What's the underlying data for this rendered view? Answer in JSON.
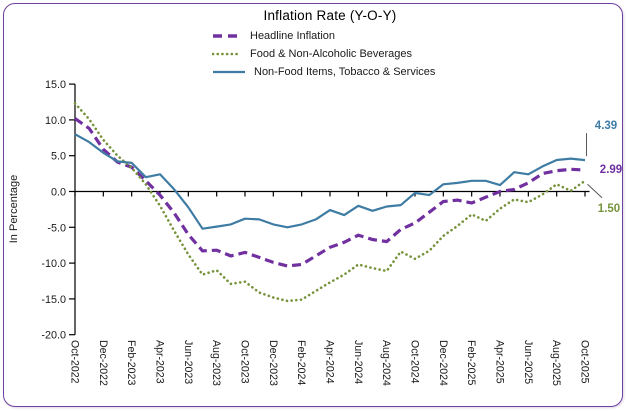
{
  "frame": {
    "border_color": "#7040A0"
  },
  "header": {
    "title": "Inflation Rate (Y-O-Y)"
  },
  "legend": {
    "items": [
      {
        "label": "Headline Inflation",
        "color": "#7030A0",
        "style": "dashed"
      },
      {
        "label": "Food & Non-Alcoholic Beverages",
        "color": "#77933C",
        "style": "dotted"
      },
      {
        "label": "Non-Food Items, Tobacco & Services",
        "color": "#3F7CA4",
        "style": "solid"
      }
    ]
  },
  "chart_data": {
    "type": "line",
    "title": "Inflation Rate (Y-O-Y)",
    "xlabel": "",
    "ylabel": "In Percentage",
    "ylim": [
      -20,
      15
    ],
    "ytick_step": 5,
    "ytick_labels": [
      "15.0",
      "10.0",
      "5.0",
      "0.0",
      "-5.0",
      "-10.0",
      "-15.0",
      "-20.0"
    ],
    "grid": false,
    "legend_position": "top-center",
    "x_axis_position": "zero-line with labels low",
    "xtick_every": 2,
    "x": [
      "Oct-2022",
      "Nov-2022",
      "Dec-2022",
      "Jan-2023",
      "Feb-2023",
      "Mar-2023",
      "Apr-2023",
      "May-2023",
      "Jun-2023",
      "Jul-2023",
      "Aug-2023",
      "Sep-2023",
      "Oct-2023",
      "Nov-2023",
      "Dec-2023",
      "Jan-2024",
      "Feb-2024",
      "Mar-2024",
      "Apr-2024",
      "May-2024",
      "Jun-2024",
      "Jul-2024",
      "Aug-2024",
      "Sep-2024",
      "Oct-2024",
      "Nov-2024",
      "Dec-2024",
      "Jan-2025",
      "Feb-2025",
      "Mar-2025",
      "Apr-2025",
      "May-2025",
      "Jun-2025",
      "Jul-2025",
      "Aug-2025",
      "Sep-2025",
      "Oct-2025"
    ],
    "series": [
      {
        "name": "Headline Inflation",
        "color": "#7030A0",
        "style": "dashed",
        "values": [
          10.2,
          8.8,
          5.9,
          4.1,
          3.4,
          1.5,
          -0.5,
          -3.0,
          -6.0,
          -8.3,
          -8.2,
          -9.0,
          -8.5,
          -9.2,
          -9.9,
          -10.4,
          -10.2,
          -9.0,
          -7.8,
          -7.1,
          -6.1,
          -6.7,
          -7.0,
          -5.3,
          -4.4,
          -2.9,
          -1.4,
          -1.2,
          -1.6,
          -0.8,
          0.0,
          0.3,
          1.2,
          2.5,
          2.9,
          3.1,
          2.99
        ]
      },
      {
        "name": "Food & Non-Alcoholic Beverages",
        "color": "#77933C",
        "style": "dotted",
        "values": [
          12.3,
          10.1,
          7.2,
          5.0,
          3.3,
          1.0,
          -2.0,
          -5.5,
          -8.8,
          -11.6,
          -11.0,
          -12.9,
          -12.6,
          -14.1,
          -14.8,
          -15.3,
          -15.1,
          -13.9,
          -12.7,
          -11.6,
          -10.2,
          -10.7,
          -11.1,
          -8.4,
          -9.4,
          -8.3,
          -6.2,
          -4.8,
          -3.2,
          -4.1,
          -2.4,
          -1.1,
          -1.5,
          -0.4,
          1.0,
          0.1,
          1.5
        ]
      },
      {
        "name": "Non-Food Items, Tobacco & Services",
        "color": "#3F7CA4",
        "style": "solid",
        "values": [
          8.0,
          6.9,
          5.4,
          4.2,
          4.0,
          2.0,
          2.4,
          0.3,
          -2.2,
          -5.2,
          -4.9,
          -4.6,
          -3.8,
          -3.9,
          -4.6,
          -5.0,
          -4.6,
          -3.9,
          -2.6,
          -3.3,
          -2.0,
          -2.7,
          -2.1,
          -1.9,
          -0.2,
          -0.5,
          1.0,
          1.2,
          1.5,
          1.5,
          0.9,
          2.7,
          2.4,
          3.5,
          4.4,
          4.6,
          4.39
        ]
      }
    ],
    "end_labels": [
      {
        "text": "4.39",
        "series": "Non-Food Items, Tobacco & Services",
        "color": "#3F7CA4"
      },
      {
        "text": "2.99",
        "series": "Headline Inflation",
        "color": "#7030A0"
      },
      {
        "text": "1.50",
        "series": "Food & Non-Alcoholic Beverages",
        "color": "#77933C"
      }
    ]
  }
}
